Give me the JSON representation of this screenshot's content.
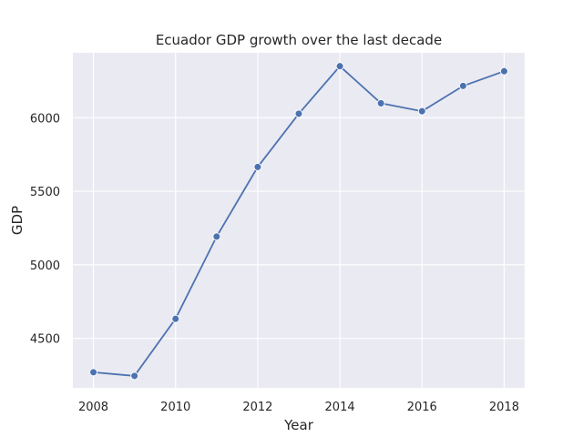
{
  "chart_data": {
    "type": "line",
    "title": "Ecuador GDP growth over the last decade",
    "xlabel": "Year",
    "ylabel": "GDP",
    "x": [
      2008,
      2009,
      2010,
      2011,
      2012,
      2013,
      2014,
      2015,
      2016,
      2017,
      2018
    ],
    "series": [
      {
        "values": [
          4270,
          4245,
          4633,
          5192,
          5665,
          6027,
          6350,
          6098,
          6044,
          6216,
          6316
        ],
        "color": "#4c72b0"
      }
    ],
    "xlim": [
      2007.5,
      2018.5
    ],
    "ylim": [
      4164,
      6441
    ],
    "xticks": [
      2008,
      2010,
      2012,
      2014,
      2016,
      2018
    ],
    "yticks": [
      4500,
      5000,
      5500,
      6000
    ],
    "grid": true,
    "background": "#eaeaf2",
    "gridColor": "#ffffff"
  }
}
